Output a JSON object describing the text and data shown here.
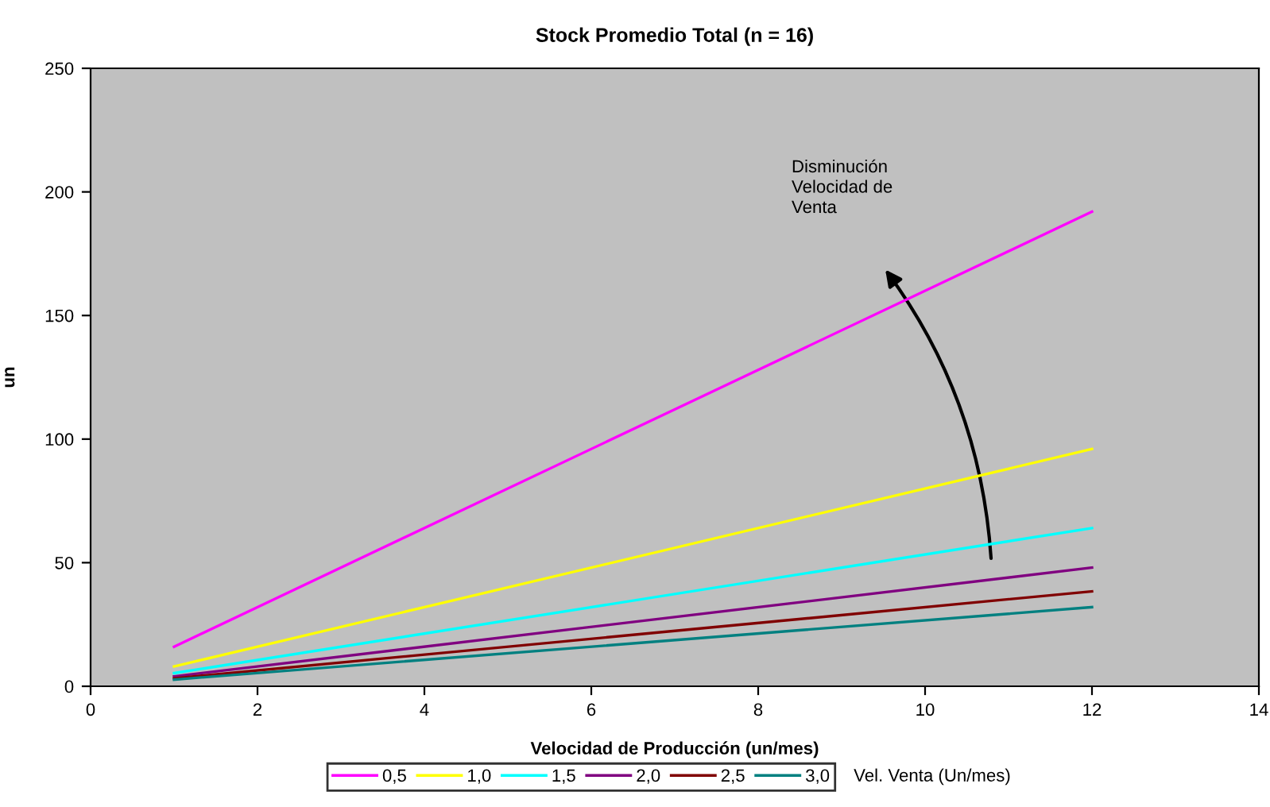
{
  "chart_data": {
    "type": "line",
    "title": "Stock Promedio Total (n = 16)",
    "xlabel": "Velocidad de Producción (un/mes)",
    "ylabel": "un",
    "legend_title": "Vel. Venta (Un/mes)",
    "x": [
      1,
      12
    ],
    "series": [
      {
        "name": "0,5",
        "color": "#ff00ff",
        "values": [
          16,
          192
        ]
      },
      {
        "name": "1,0",
        "color": "#ffff00",
        "values": [
          8,
          96
        ]
      },
      {
        "name": "1,5",
        "color": "#00ffff",
        "values": [
          5.3,
          64
        ]
      },
      {
        "name": "2,0",
        "color": "#800080",
        "values": [
          4,
          48
        ]
      },
      {
        "name": "2,5",
        "color": "#800000",
        "values": [
          3.2,
          38.4
        ]
      },
      {
        "name": "3,0",
        "color": "#008080",
        "values": [
          2.7,
          32
        ]
      }
    ],
    "annotations": [
      "Disminución\nVelocidad de\nVenta"
    ],
    "xlim": [
      0,
      14
    ],
    "xticks": [
      0,
      2,
      4,
      6,
      8,
      10,
      12,
      14
    ],
    "ylim": [
      0,
      250
    ],
    "yticks": [
      0,
      50,
      100,
      150,
      200,
      250
    ],
    "grid": false,
    "legend": "bottom",
    "marker": "none",
    "line_style": "solid"
  }
}
